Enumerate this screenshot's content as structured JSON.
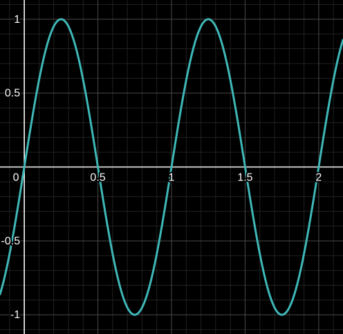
{
  "chart_data": {
    "type": "line",
    "title": "",
    "xlabel": "",
    "ylabel": "",
    "xlim": [
      -0.165,
      2.165
    ],
    "ylim": [
      -1.13,
      1.13
    ],
    "grid": true,
    "minor_grid": true,
    "x_ticks": [
      {
        "value": 0,
        "label": "0"
      },
      {
        "value": 0.5,
        "label": "0.5"
      },
      {
        "value": 1,
        "label": "1"
      },
      {
        "value": 1.5,
        "label": "1.5"
      },
      {
        "value": 2,
        "label": "2"
      }
    ],
    "y_ticks": [
      {
        "value": 1,
        "label": "1"
      },
      {
        "value": 0.5,
        "label": "0.5"
      },
      {
        "value": -0.5,
        "label": "-0.5"
      },
      {
        "value": -1,
        "label": "-1"
      }
    ],
    "series": [
      {
        "function": "sin(2πx)",
        "color": "#3fb8b8",
        "x": [
          -0.165,
          -0.125,
          -0.0625,
          0,
          0.0625,
          0.125,
          0.1875,
          0.25,
          0.3125,
          0.375,
          0.4375,
          0.5,
          0.5625,
          0.625,
          0.6875,
          0.75,
          0.8125,
          0.875,
          0.9375,
          1,
          1.0625,
          1.125,
          1.1875,
          1.25,
          1.3125,
          1.375,
          1.4375,
          1.5,
          1.5625,
          1.625,
          1.6875,
          1.75,
          1.8125,
          1.875,
          1.9375,
          2,
          2.0625,
          2.125,
          2.165
        ],
        "y": [
          -0.86,
          -0.707,
          -0.383,
          0,
          0.383,
          0.707,
          0.924,
          1,
          0.924,
          0.707,
          0.383,
          0,
          -0.383,
          -0.707,
          -0.924,
          -1,
          -0.924,
          -0.707,
          -0.383,
          0,
          0.383,
          0.707,
          0.924,
          1,
          0.924,
          0.707,
          0.383,
          0,
          -0.383,
          -0.707,
          -0.924,
          -1,
          -0.924,
          -0.707,
          -0.383,
          0,
          0.383,
          0.707,
          0.86
        ]
      }
    ]
  },
  "colors": {
    "background": "#000000",
    "major_grid": "#4a4a4a",
    "minor_grid": "#222222",
    "axis": "#ffffff",
    "tick_text": "#ffffff"
  }
}
